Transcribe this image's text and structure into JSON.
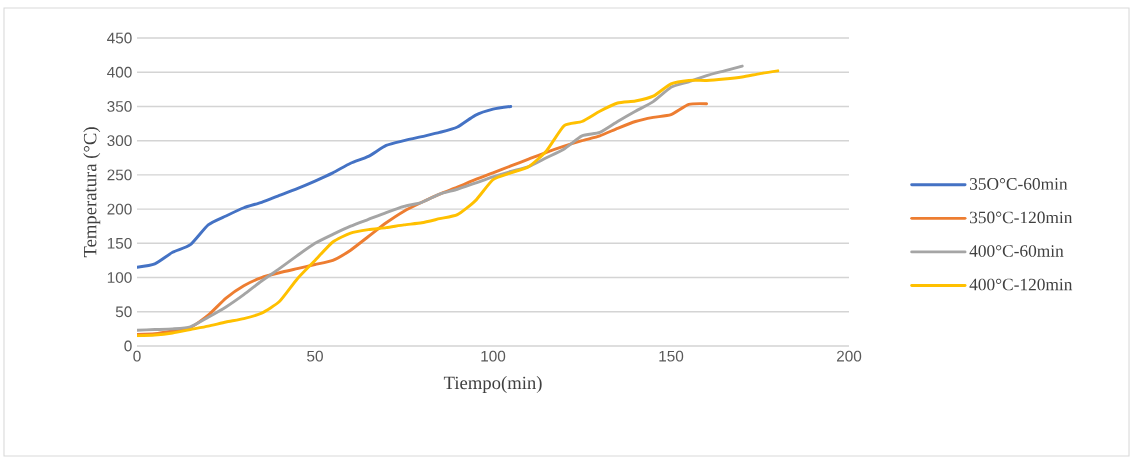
{
  "chart_data": {
    "type": "line",
    "xlabel": "Tiempo(min)",
    "ylabel": "Temperatura (°C)",
    "xlim": [
      0,
      200
    ],
    "ylim": [
      0,
      450
    ],
    "xticks": [
      0,
      50,
      100,
      150,
      200
    ],
    "yticks": [
      0,
      50,
      100,
      150,
      200,
      250,
      300,
      350,
      400,
      450
    ],
    "grid": "y",
    "legend": "right",
    "marker": "none",
    "line_style": "solid",
    "series": [
      {
        "name": "35O°C-60min",
        "color": "#4472c4",
        "x": [
          0,
          5,
          10,
          15,
          20,
          25,
          30,
          35,
          40,
          45,
          50,
          55,
          60,
          65,
          70,
          75,
          80,
          85,
          90,
          95,
          100,
          105
        ],
        "values": [
          115,
          120,
          137,
          148,
          177,
          190,
          202,
          210,
          220,
          230,
          241,
          253,
          267,
          277,
          293,
          300,
          306,
          312,
          320,
          337,
          346,
          350
        ]
      },
      {
        "name": "350°C-120min",
        "color": "#ed7d31",
        "x": [
          0,
          5,
          10,
          15,
          20,
          25,
          30,
          35,
          40,
          45,
          50,
          55,
          60,
          65,
          70,
          75,
          80,
          85,
          90,
          95,
          100,
          105,
          110,
          115,
          120,
          125,
          130,
          135,
          140,
          145,
          150,
          155,
          160
        ],
        "values": [
          17,
          18,
          22,
          27,
          45,
          70,
          88,
          100,
          107,
          113,
          119,
          125,
          140,
          160,
          180,
          197,
          210,
          222,
          232,
          243,
          253,
          263,
          273,
          283,
          292,
          300,
          307,
          318,
          328,
          334,
          338,
          353,
          354
        ]
      },
      {
        "name": "400°C-60min",
        "color": "#a5a5a5",
        "x": [
          0,
          5,
          10,
          15,
          20,
          25,
          30,
          35,
          40,
          45,
          50,
          55,
          60,
          65,
          70,
          75,
          80,
          85,
          90,
          95,
          100,
          105,
          110,
          115,
          120,
          125,
          130,
          135,
          140,
          145,
          150,
          155,
          160,
          165,
          170
        ],
        "values": [
          23,
          24,
          25,
          28,
          42,
          57,
          75,
          95,
          113,
          132,
          150,
          163,
          175,
          185,
          195,
          204,
          210,
          222,
          229,
          238,
          247,
          255,
          262,
          275,
          288,
          307,
          312,
          328,
          343,
          357,
          378,
          386,
          395,
          402,
          409
        ]
      },
      {
        "name": "400°C-120min",
        "color": "#ffc000",
        "x": [
          0,
          5,
          10,
          15,
          20,
          25,
          30,
          35,
          40,
          45,
          50,
          55,
          60,
          65,
          70,
          75,
          80,
          85,
          90,
          95,
          100,
          105,
          110,
          115,
          120,
          125,
          130,
          135,
          140,
          145,
          150,
          155,
          160,
          165,
          170,
          175,
          180
        ],
        "values": [
          15,
          16,
          19,
          24,
          29,
          35,
          40,
          48,
          65,
          98,
          125,
          152,
          165,
          170,
          173,
          177,
          180,
          186,
          192,
          212,
          243,
          253,
          262,
          285,
          322,
          328,
          343,
          355,
          358,
          365,
          383,
          388,
          388,
          390,
          393,
          398,
          402
        ]
      }
    ]
  }
}
